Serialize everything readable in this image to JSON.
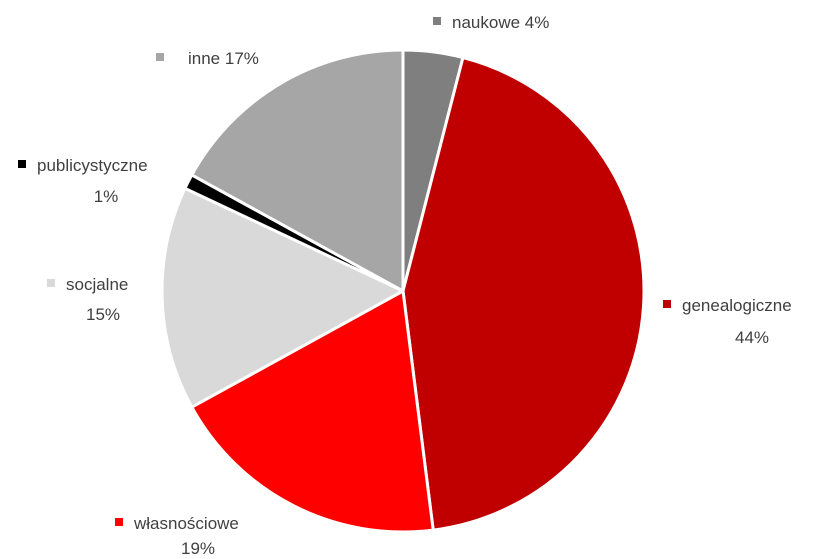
{
  "chart_data": {
    "type": "pie",
    "title": "",
    "legend": "none",
    "slices": [
      {
        "label": "naukowe",
        "value": 4,
        "value_text": "4%",
        "color": "#7f7f7f"
      },
      {
        "label": "genealogiczne",
        "value": 44,
        "value_text": "44%",
        "color": "#c00000"
      },
      {
        "label": "własnościowe",
        "value": 19,
        "value_text": "19%",
        "color": "#ff0000"
      },
      {
        "label": "socjalne",
        "value": 15,
        "value_text": "15%",
        "color": "#d9d9d9"
      },
      {
        "label": "publicystyczne",
        "value": 1,
        "value_text": "1%",
        "color": "#000000"
      },
      {
        "label": "inne",
        "value": 17,
        "value_text": "17%",
        "color": "#a6a6a6"
      }
    ]
  }
}
